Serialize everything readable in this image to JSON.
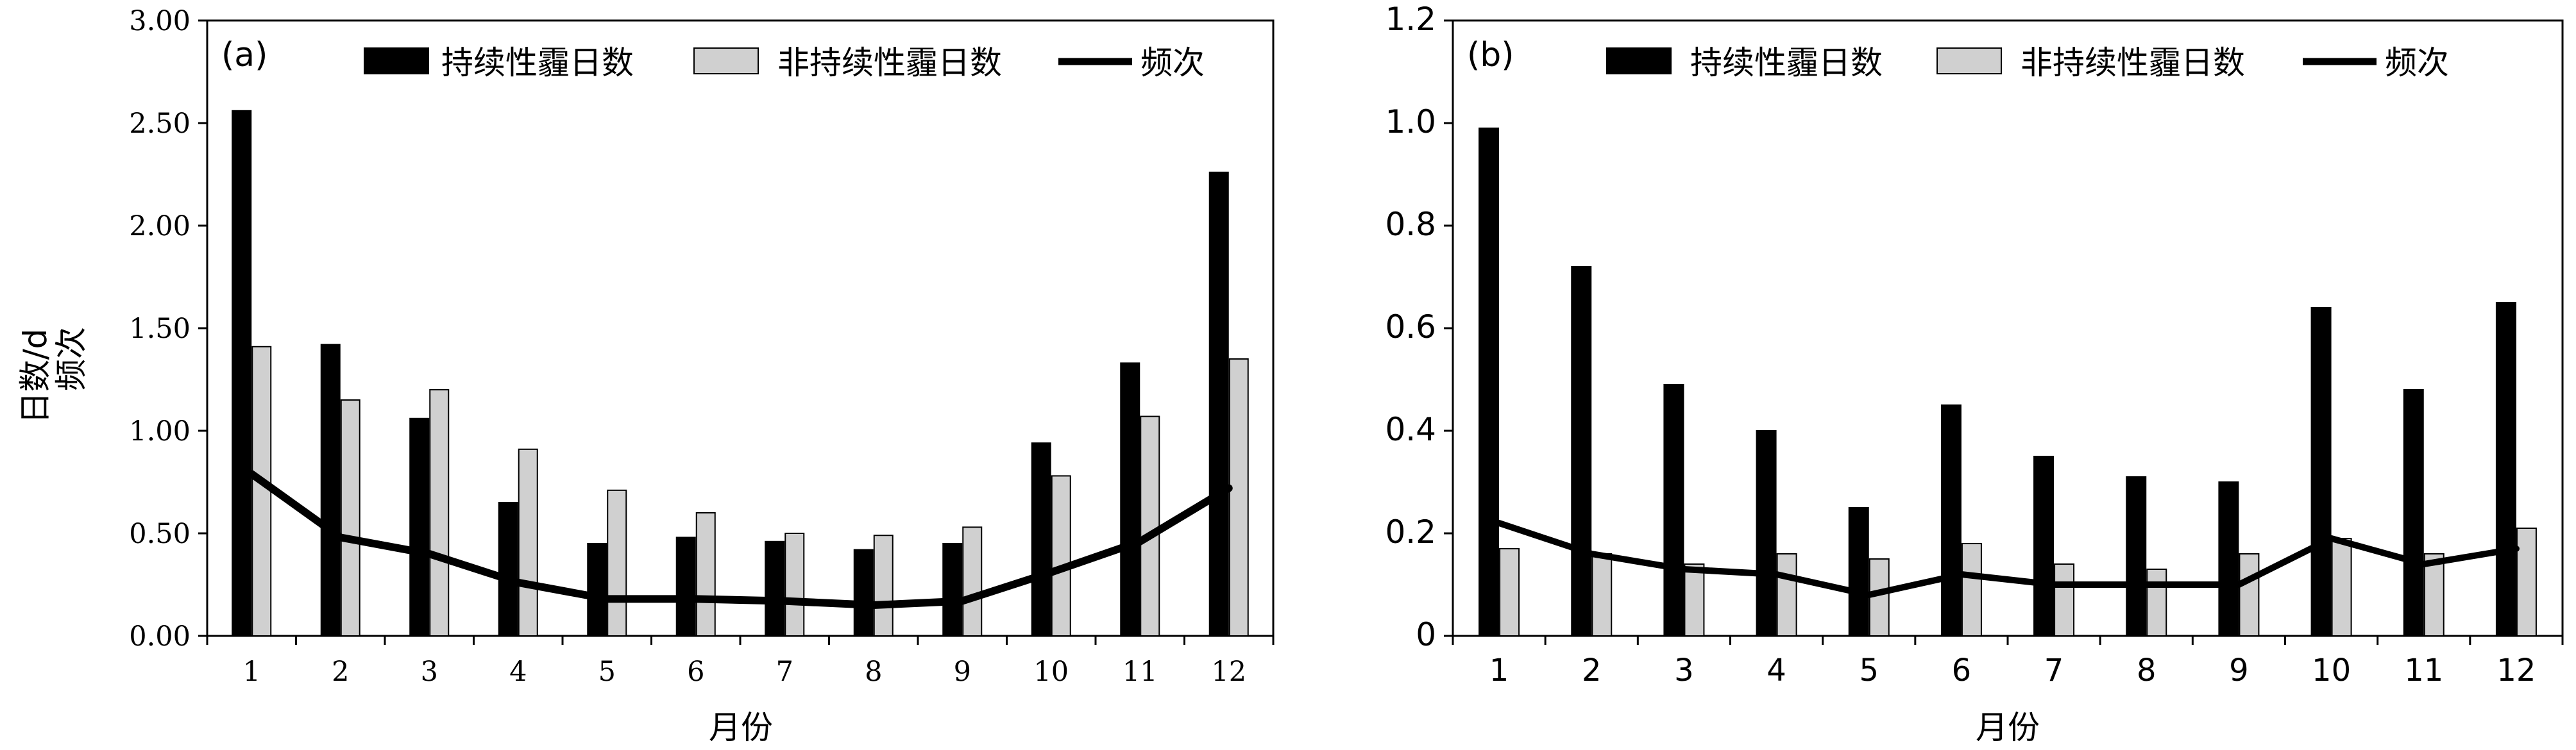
{
  "colors": {
    "persistent": "#000000",
    "non_persistent": "#d0d0d0",
    "frequency": "#000000",
    "bar_edge": "#000000"
  },
  "chart_data": [
    {
      "panel_label": "(a)",
      "type": "bar",
      "categories": [
        "1",
        "2",
        "3",
        "4",
        "5",
        "6",
        "7",
        "8",
        "9",
        "10",
        "11",
        "12"
      ],
      "series": [
        {
          "name": "持续性霾日数",
          "kind": "bar",
          "color": "#000000",
          "values": [
            2.56,
            1.42,
            1.06,
            0.65,
            0.45,
            0.48,
            0.46,
            0.42,
            0.45,
            0.94,
            1.33,
            2.26
          ]
        },
        {
          "name": "非持续性霾日数",
          "kind": "bar",
          "color": "#d0d0d0",
          "values": [
            1.41,
            1.15,
            1.2,
            0.91,
            0.71,
            0.6,
            0.5,
            0.49,
            0.53,
            0.78,
            1.07,
            1.35
          ]
        },
        {
          "name": "频次",
          "kind": "line",
          "color": "#000000",
          "values": [
            0.79,
            0.48,
            0.4,
            0.26,
            0.18,
            0.18,
            0.17,
            0.15,
            0.17,
            0.31,
            0.46,
            0.72
          ]
        }
      ],
      "xlabel": "月份",
      "ylabel_line1": "日数/d",
      "ylabel_line2": "频次",
      "ylim": [
        0,
        3
      ],
      "yticks": [
        "0.00",
        "0.50",
        "1.00",
        "1.50",
        "2.00",
        "2.50",
        "3.00"
      ],
      "legend": "top",
      "grid": false
    },
    {
      "panel_label": "(b)",
      "type": "bar",
      "categories": [
        "1",
        "2",
        "3",
        "4",
        "5",
        "6",
        "7",
        "8",
        "9",
        "10",
        "11",
        "12"
      ],
      "series": [
        {
          "name": "持续性霾日数",
          "kind": "bar",
          "color": "#000000",
          "values": [
            0.99,
            0.72,
            0.49,
            0.4,
            0.25,
            0.45,
            0.35,
            0.31,
            0.3,
            0.64,
            0.48,
            0.65
          ]
        },
        {
          "name": "非持续性霾日数",
          "kind": "bar",
          "color": "#d0d0d0",
          "values": [
            0.17,
            0.16,
            0.14,
            0.16,
            0.15,
            0.18,
            0.14,
            0.13,
            0.16,
            0.19,
            0.16,
            0.21
          ]
        },
        {
          "name": "频次",
          "kind": "line",
          "color": "#000000",
          "values": [
            0.22,
            0.16,
            0.13,
            0.12,
            0.08,
            0.12,
            0.1,
            0.1,
            0.1,
            0.19,
            0.14,
            0.17
          ]
        }
      ],
      "xlabel": "月份",
      "ylim": [
        0,
        1.2
      ],
      "yticks": [
        "0",
        "0.2",
        "0.4",
        "0.6",
        "0.8",
        "1.0",
        "1.2"
      ],
      "legend": "top",
      "grid": false
    }
  ]
}
